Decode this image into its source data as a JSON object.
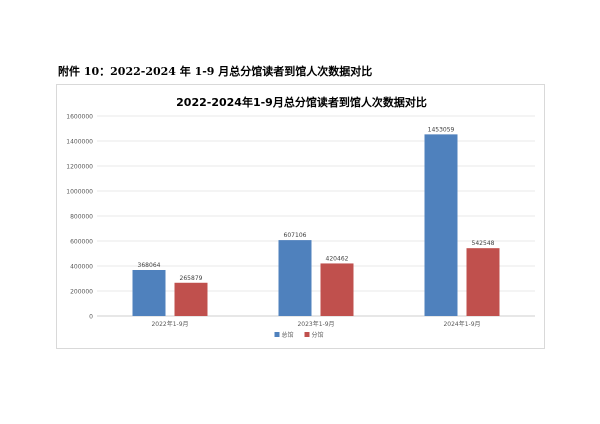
{
  "page": {
    "heading": "附件 10：2022-2024 年 1-9 月总分馆读者到馆人次数据对比"
  },
  "chart_data": {
    "type": "bar",
    "title": "2022-2024年1-9月总分馆读者到馆人次数据对比",
    "xlabel": "",
    "ylabel": "",
    "categories": [
      "2022年1-9月",
      "2023年1-9月",
      "2024年1-9月"
    ],
    "series": [
      {
        "name": "总馆",
        "color": "#4f81bd",
        "values": [
          368064,
          607106,
          1453059
        ]
      },
      {
        "name": "分馆",
        "color": "#c0504d",
        "values": [
          265879,
          420462,
          542548
        ]
      }
    ],
    "ylim": [
      0,
      1600000
    ],
    "yticks": [
      0,
      200000,
      400000,
      600000,
      800000,
      1000000,
      1200000,
      1400000,
      1600000
    ],
    "grid": true,
    "legend_position": "bottom",
    "data_labels": true
  }
}
